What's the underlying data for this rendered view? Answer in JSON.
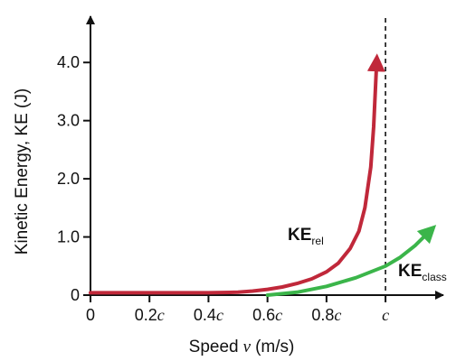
{
  "chart_data": {
    "type": "line",
    "xlabel": {
      "main": "Speed",
      "var": "v",
      "unit": "(m/s)"
    },
    "ylabel": "Kinetic Energy, KE (J)",
    "x_ticks": [
      {
        "value": 0,
        "num": "0",
        "sym": ""
      },
      {
        "value": 0.2,
        "num": "0.2",
        "sym": "c"
      },
      {
        "value": 0.4,
        "num": "0.4",
        "sym": "c"
      },
      {
        "value": 0.6,
        "num": "0.6",
        "sym": "c"
      },
      {
        "value": 0.8,
        "num": "0.8",
        "sym": "c"
      },
      {
        "value": 1.0,
        "num": "",
        "sym": "c"
      }
    ],
    "y_ticks": [
      {
        "value": 0,
        "label": "0"
      },
      {
        "value": 1.0,
        "label": "1.0"
      },
      {
        "value": 2.0,
        "label": "2.0"
      },
      {
        "value": 3.0,
        "label": "3.0"
      },
      {
        "value": 4.0,
        "label": "4.0"
      }
    ],
    "xlim": [
      0,
      1.15
    ],
    "ylim": [
      0,
      4.5
    ],
    "asymptote_x": 1.0,
    "series": [
      {
        "name_main": "KE",
        "name_sub": "rel",
        "color": "#c0283a",
        "x": [
          0,
          0.1,
          0.2,
          0.3,
          0.4,
          0.5,
          0.55,
          0.6,
          0.65,
          0.7,
          0.75,
          0.8,
          0.84,
          0.88,
          0.91,
          0.93,
          0.95,
          0.96,
          0.97
        ],
        "y": [
          0.04,
          0.04,
          0.04,
          0.04,
          0.04,
          0.05,
          0.07,
          0.1,
          0.14,
          0.2,
          0.28,
          0.4,
          0.55,
          0.8,
          1.1,
          1.5,
          2.2,
          2.9,
          4.0
        ]
      },
      {
        "name_main": "KE",
        "name_sub": "class",
        "color": "#3bb54a",
        "x": [
          0.6,
          0.7,
          0.8,
          0.9,
          1.0,
          1.05,
          1.1,
          1.15
        ],
        "y": [
          0.0,
          0.05,
          0.15,
          0.3,
          0.5,
          0.65,
          0.85,
          1.1
        ]
      }
    ]
  }
}
